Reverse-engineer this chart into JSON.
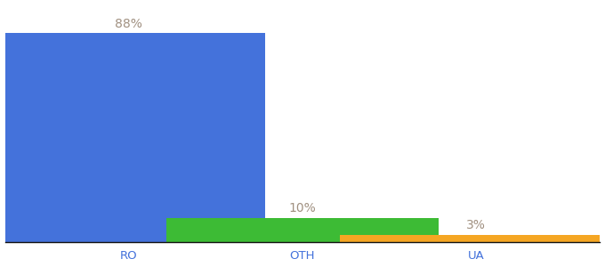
{
  "categories": [
    "RO",
    "OTH",
    "UA"
  ],
  "values": [
    88,
    10,
    3
  ],
  "bar_colors": [
    "#4472db",
    "#3dbb35",
    "#f5a623"
  ],
  "label_color": "#a09080",
  "label_fontsize": 10,
  "tick_fontsize": 9.5,
  "tick_color": "#4472db",
  "background_color": "#ffffff",
  "ylim": [
    0,
    100
  ],
  "bar_width": 0.55,
  "x_positions": [
    0.15,
    0.5,
    0.85
  ],
  "figsize": [
    6.8,
    3.0
  ],
  "dpi": 100
}
